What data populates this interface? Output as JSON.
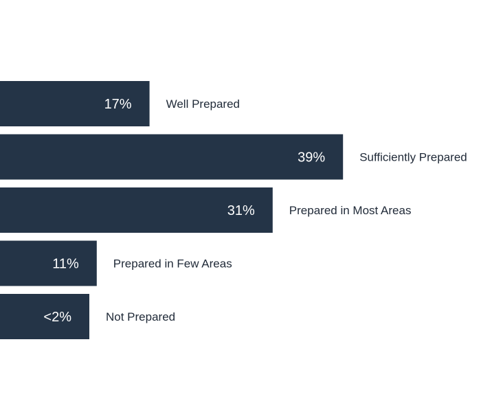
{
  "chart_data": {
    "type": "bar",
    "orientation": "horizontal",
    "categories": [
      "Well Prepared",
      "Sufficiently Prepared",
      "Prepared in Most Areas",
      "Prepared in Few Areas",
      "Not Prepared"
    ],
    "values": [
      17,
      39,
      31,
      11,
      2
    ],
    "value_labels": [
      "17%",
      "39%",
      "31%",
      "11%",
      "<2%"
    ],
    "title": "",
    "xlabel": "",
    "ylabel": "",
    "xlim": [
      0,
      50
    ],
    "grid": false,
    "legend": "none"
  },
  "colors": {
    "bar": "#243447",
    "value_text": "#ffffff",
    "label_text": "#1f2937",
    "background": "#ffffff"
  }
}
